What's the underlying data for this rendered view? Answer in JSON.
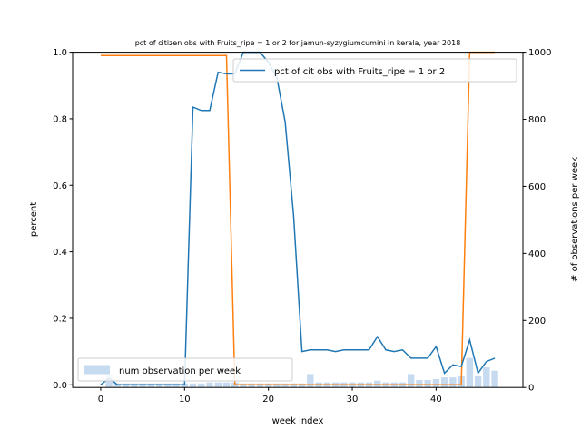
{
  "chart_data": {
    "type": "line",
    "title": "pct of citizen obs with Fruits_ripe = 1 or 2 for jamun-syzygiumcumini in kerala, year 2018",
    "xlabel": "week index",
    "ylabel_left": "percent",
    "ylabel_right": "# of observations per week",
    "xlim": [
      -3.35,
      50.35
    ],
    "ylim_left": [
      -0.008,
      1.0
    ],
    "ylim_right": [
      0,
      1000
    ],
    "x_ticks": [
      0,
      10,
      20,
      30,
      40
    ],
    "y_left_ticks": [
      "0.0",
      "0.2",
      "0.4",
      "0.6",
      "0.8",
      "1.0"
    ],
    "y_right_ticks": [
      "0",
      "200",
      "400",
      "600",
      "800",
      "1000"
    ],
    "legend_line": "pct of cit obs with Fruits_ripe = 1 or 2",
    "legend_bar": "num observation per week",
    "weeks": [
      0,
      1,
      2,
      3,
      4,
      5,
      6,
      7,
      8,
      9,
      10,
      11,
      12,
      13,
      14,
      15,
      16,
      17,
      18,
      19,
      20,
      21,
      22,
      23,
      24,
      25,
      26,
      27,
      28,
      29,
      30,
      31,
      32,
      33,
      34,
      35,
      36,
      37,
      38,
      39,
      40,
      41,
      42,
      43,
      44,
      45,
      46,
      47
    ],
    "pct_line": [
      0.0,
      0.02,
      0.0,
      0.0,
      0.0,
      0.0,
      0.0,
      0.0,
      0.0,
      0.0,
      0.0,
      0.835,
      0.825,
      0.825,
      0.94,
      0.935,
      0.935,
      1.0,
      1.0,
      1.0,
      0.97,
      0.925,
      0.79,
      0.51,
      0.1,
      0.105,
      0.105,
      0.105,
      0.1,
      0.105,
      0.105,
      0.105,
      0.105,
      0.145,
      0.105,
      0.1,
      0.105,
      0.08,
      0.08,
      0.08,
      0.115,
      0.035,
      0.06,
      0.055,
      0.135,
      0.035,
      0.07,
      0.08
    ],
    "step_line": [
      0.99,
      0.99,
      0.99,
      0.99,
      0.99,
      0.99,
      0.99,
      0.99,
      0.99,
      0.99,
      0.99,
      0.99,
      0.99,
      0.99,
      0.99,
      0.99,
      0.0,
      0.0,
      0.0,
      0.0,
      0.0,
      0.0,
      0.0,
      0.0,
      0.0,
      0.0,
      0.0,
      0.0,
      0.0,
      0.0,
      0.0,
      0.0,
      0.0,
      0.0,
      0.0,
      0.0,
      0.0,
      0.0,
      0.0,
      0.0,
      0.0,
      0.0,
      0.0,
      0.0,
      1.0,
      1.0,
      1.0,
      1.0
    ],
    "bar_counts": [
      0,
      40,
      12,
      12,
      12,
      12,
      12,
      12,
      12,
      12,
      12,
      12,
      12,
      15,
      15,
      15,
      15,
      12,
      12,
      12,
      12,
      12,
      12,
      12,
      12,
      40,
      15,
      15,
      15,
      15,
      15,
      15,
      15,
      20,
      15,
      15,
      15,
      40,
      22,
      22,
      25,
      30,
      30,
      35,
      88,
      35,
      60,
      50
    ],
    "colors": {
      "pct_line": "#1f77b4",
      "step_line": "#ff7f0e",
      "bars": "#c6dbef"
    },
    "grid": false,
    "legend_line_placement": "top-right",
    "legend_bar_placement": "bottom-left"
  }
}
